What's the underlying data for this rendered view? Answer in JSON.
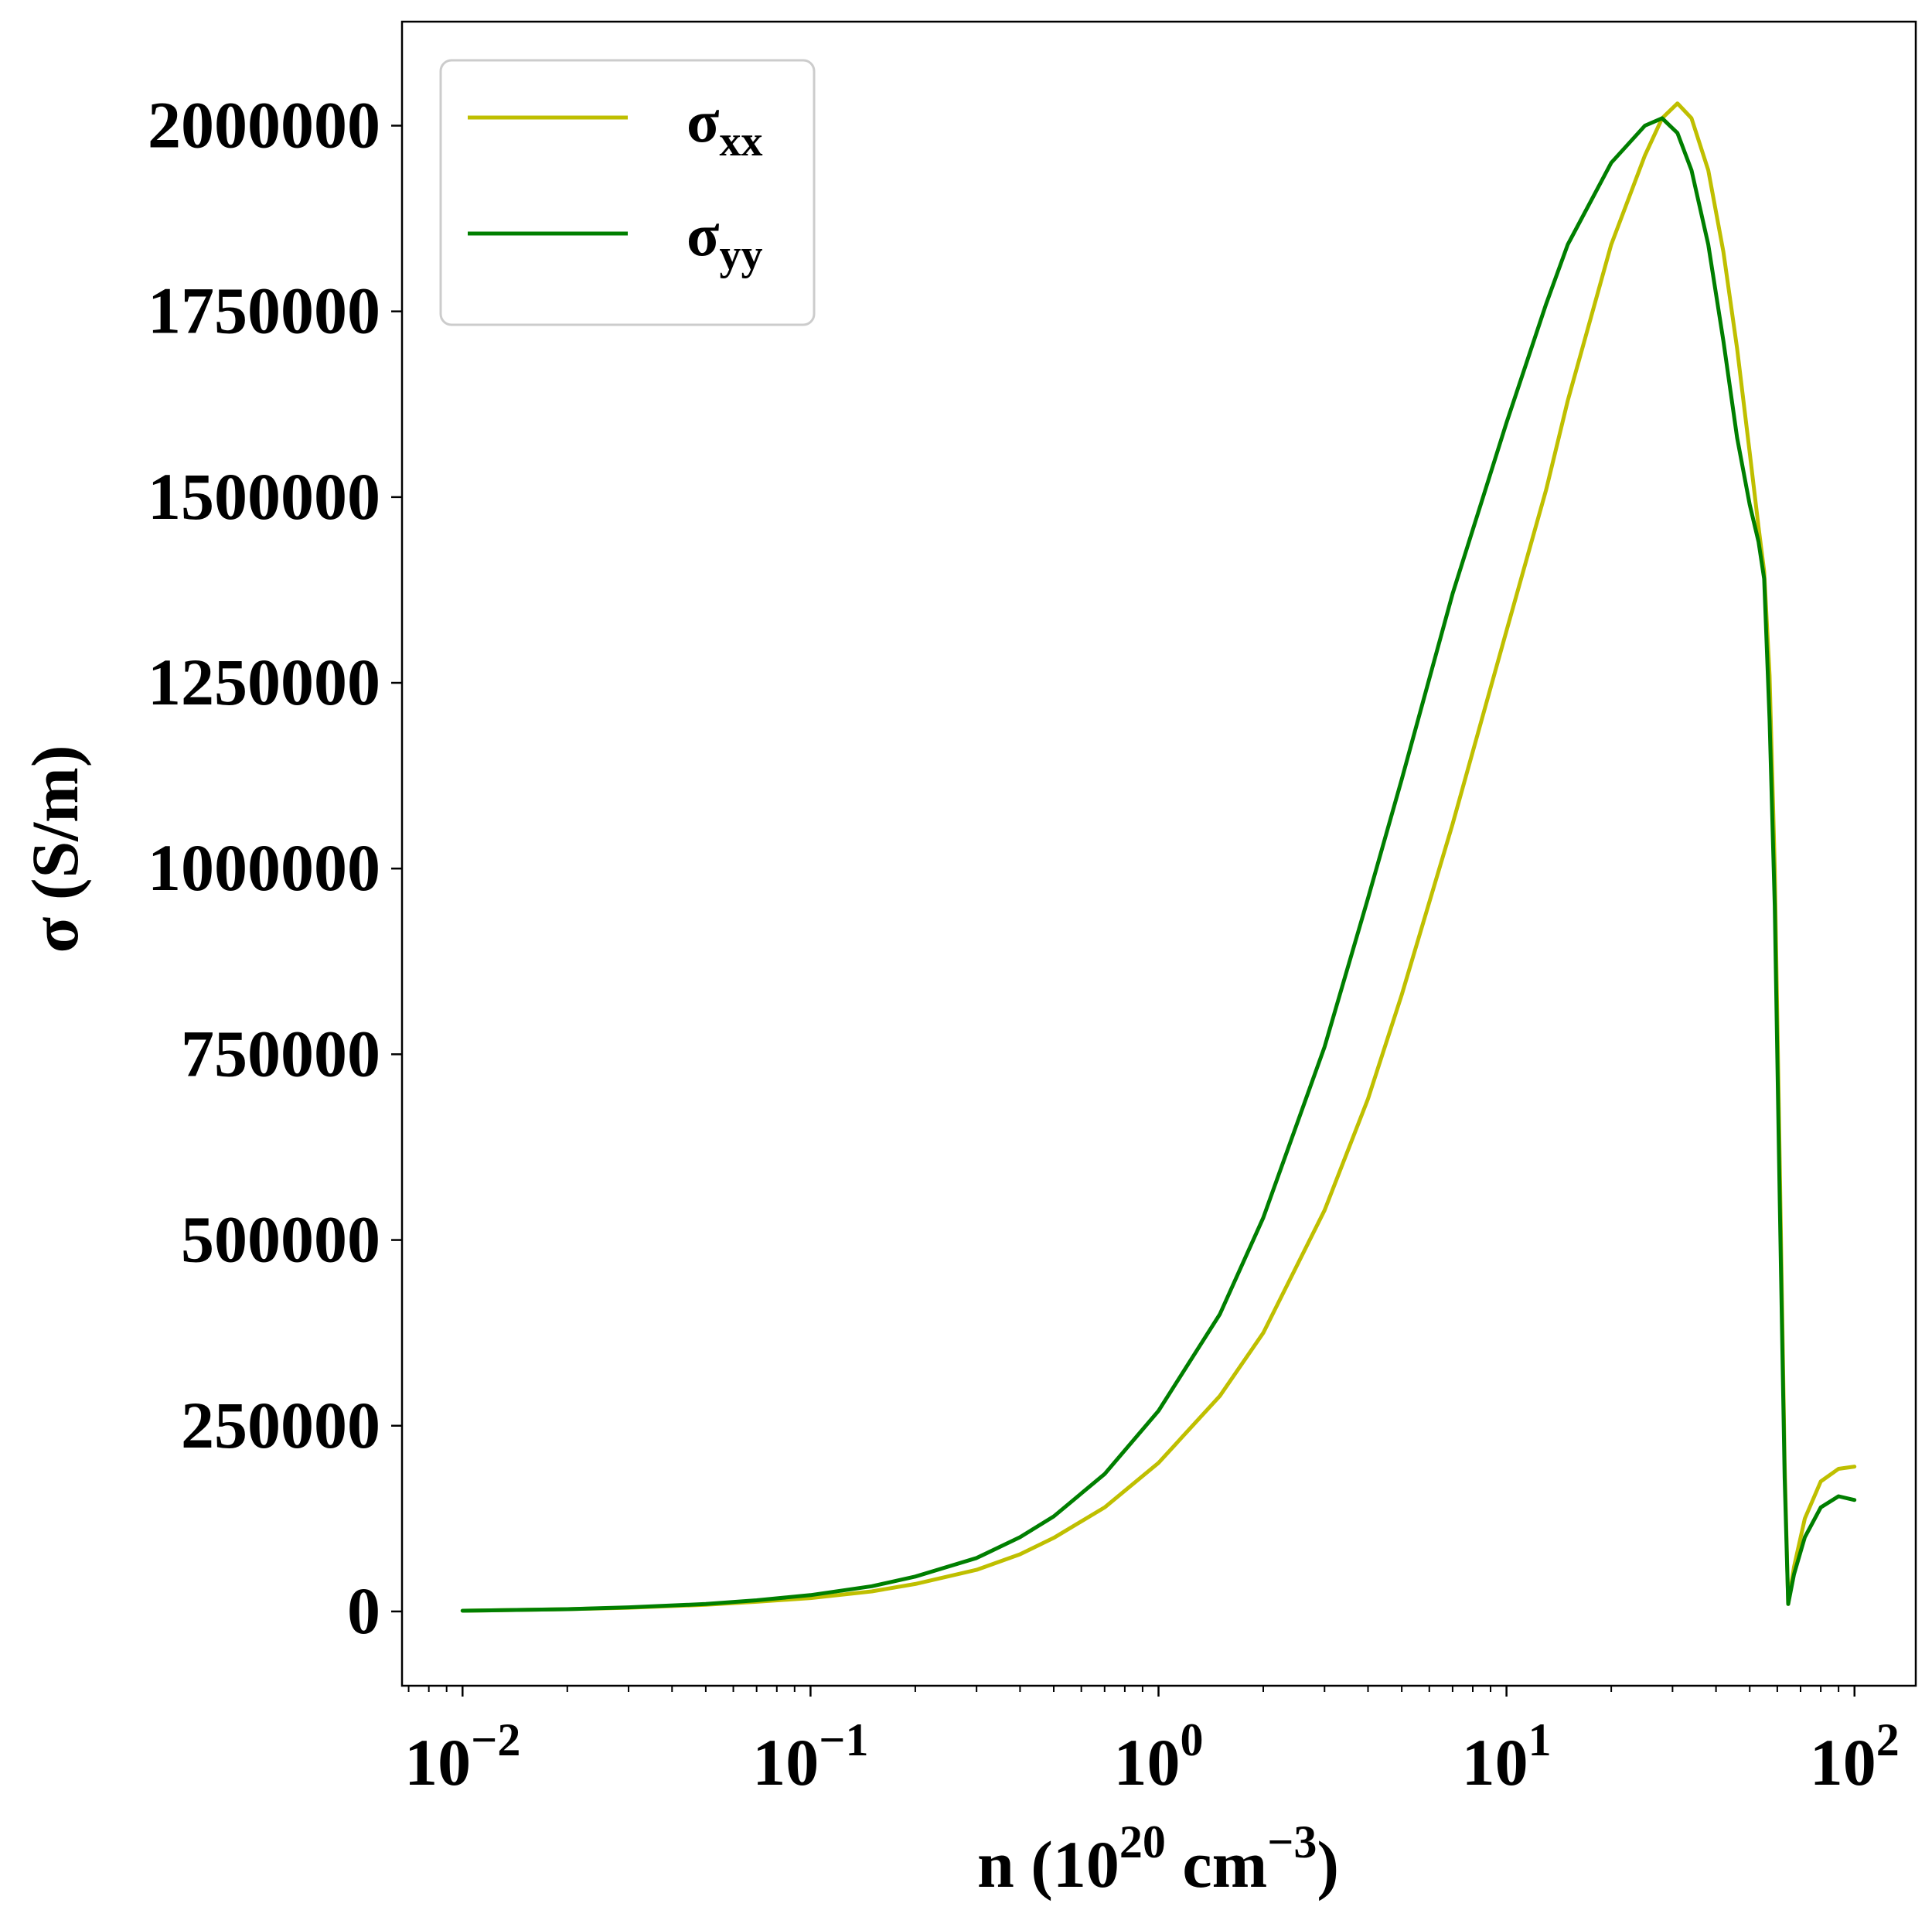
{
  "chart_data": {
    "type": "line",
    "xlabel": {
      "base": "n (10",
      "sup1": "20",
      "mid": " cm",
      "sup2": "−3",
      "end": ")"
    },
    "ylabel": "σ (S/m)",
    "xscale": "log",
    "xlim": [
      0.0067,
      150
    ],
    "ylim": [
      -100000,
      2140000
    ],
    "grid": false,
    "legend_position": "top-left",
    "x_ticks": [
      {
        "value": 0.01,
        "base": "10",
        "exp": "−2"
      },
      {
        "value": 0.1,
        "base": "10",
        "exp": "−1"
      },
      {
        "value": 1,
        "base": "10",
        "exp": "0"
      },
      {
        "value": 10,
        "base": "10",
        "exp": "1"
      },
      {
        "value": 100,
        "base": "10",
        "exp": "2"
      }
    ],
    "y_ticks": [
      0,
      250000,
      500000,
      750000,
      1000000,
      1250000,
      1500000,
      1750000,
      2000000
    ],
    "y_tick_labels": [
      "0",
      "250000",
      "500000",
      "750000",
      "1000000",
      "1250000",
      "1500000",
      "1750000",
      "2000000"
    ],
    "series": [
      {
        "name": "σxx",
        "legend_main": "σ",
        "legend_sub": "xx",
        "color": "#bfbf00",
        "points": [
          [
            0.01,
            1000
          ],
          [
            0.02,
            3000
          ],
          [
            0.03,
            5000
          ],
          [
            0.05,
            9000
          ],
          [
            0.07,
            13000
          ],
          [
            0.1,
            18000
          ],
          [
            0.15,
            27000
          ],
          [
            0.2,
            37000
          ],
          [
            0.3,
            56000
          ],
          [
            0.4,
            77000
          ],
          [
            0.5,
            99000
          ],
          [
            0.7,
            140000
          ],
          [
            1.0,
            200000
          ],
          [
            1.5,
            290000
          ],
          [
            2.0,
            375000
          ],
          [
            3.0,
            540000
          ],
          [
            4.0,
            690000
          ],
          [
            5.0,
            830000
          ],
          [
            7.0,
            1060000
          ],
          [
            10.0,
            1320000
          ],
          [
            13.0,
            1510000
          ],
          [
            15.0,
            1630000
          ],
          [
            20.0,
            1840000
          ],
          [
            25.0,
            1960000
          ],
          [
            28.0,
            2010000
          ],
          [
            31.0,
            2030000
          ],
          [
            34.0,
            2010000
          ],
          [
            38.0,
            1940000
          ],
          [
            42.0,
            1830000
          ],
          [
            46.0,
            1700000
          ],
          [
            50.0,
            1560000
          ],
          [
            53.0,
            1460000
          ],
          [
            55.0,
            1400000
          ],
          [
            57.0,
            1260000
          ],
          [
            59.0,
            1000000
          ],
          [
            61.0,
            600000
          ],
          [
            63.0,
            200000
          ],
          [
            64.5,
            10000
          ],
          [
            67.0,
            60000
          ],
          [
            72.0,
            125000
          ],
          [
            80.0,
            175000
          ],
          [
            90.0,
            192000
          ],
          [
            100.0,
            195000
          ]
        ]
      },
      {
        "name": "σyy",
        "legend_main": "σ",
        "legend_sub": "yy",
        "color": "#007f00",
        "points": [
          [
            0.01,
            1000
          ],
          [
            0.02,
            3000
          ],
          [
            0.03,
            5500
          ],
          [
            0.05,
            10000
          ],
          [
            0.07,
            15000
          ],
          [
            0.1,
            22000
          ],
          [
            0.15,
            34000
          ],
          [
            0.2,
            47000
          ],
          [
            0.3,
            72000
          ],
          [
            0.4,
            100000
          ],
          [
            0.5,
            128000
          ],
          [
            0.7,
            185000
          ],
          [
            1.0,
            270000
          ],
          [
            1.5,
            400000
          ],
          [
            2.0,
            530000
          ],
          [
            3.0,
            760000
          ],
          [
            4.0,
            960000
          ],
          [
            5.0,
            1120000
          ],
          [
            7.0,
            1370000
          ],
          [
            10.0,
            1600000
          ],
          [
            13.0,
            1760000
          ],
          [
            15.0,
            1840000
          ],
          [
            20.0,
            1950000
          ],
          [
            25.0,
            2000000
          ],
          [
            28.0,
            2010000
          ],
          [
            31.0,
            1990000
          ],
          [
            34.0,
            1940000
          ],
          [
            38.0,
            1840000
          ],
          [
            42.0,
            1710000
          ],
          [
            46.0,
            1580000
          ],
          [
            50.0,
            1490000
          ],
          [
            53.0,
            1440000
          ],
          [
            55.0,
            1390000
          ],
          [
            57.0,
            1200000
          ],
          [
            59.0,
            950000
          ],
          [
            61.0,
            550000
          ],
          [
            63.0,
            180000
          ],
          [
            64.5,
            10000
          ],
          [
            67.0,
            50000
          ],
          [
            72.0,
            100000
          ],
          [
            80.0,
            140000
          ],
          [
            90.0,
            155000
          ],
          [
            100.0,
            150000
          ]
        ]
      }
    ]
  }
}
